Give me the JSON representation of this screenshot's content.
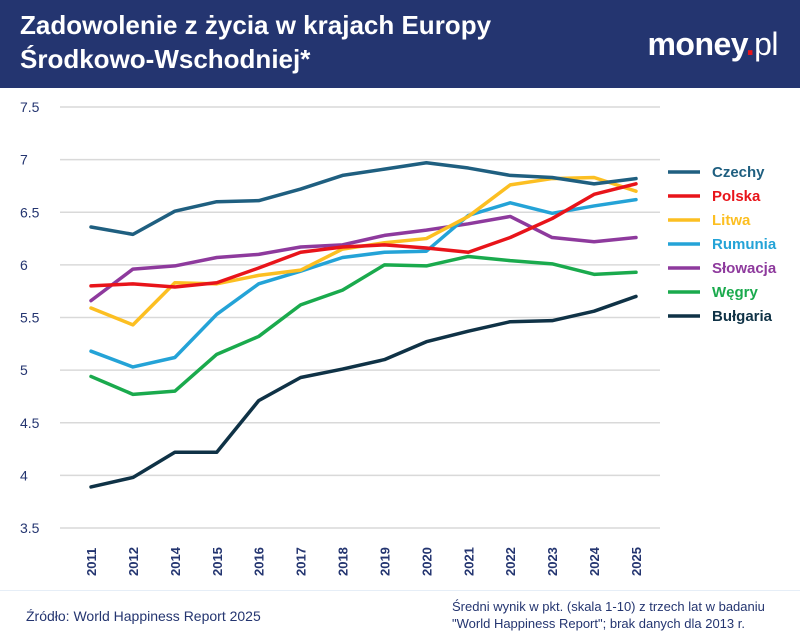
{
  "header": {
    "title_line1": "Zadowolenie z życia w krajach Europy",
    "title_line2": "Środkowo-Wschodniej*",
    "logo": "money.pl",
    "background_color": "#243570"
  },
  "chart_data": {
    "type": "line",
    "title": "Zadowolenie z życia w krajach Europy Środkowo-Wschodniej*",
    "xlabel": "",
    "ylabel": "",
    "categories": [
      "2011",
      "2012",
      "2014",
      "2015",
      "2016",
      "2017",
      "2018",
      "2019",
      "2020",
      "2021",
      "2022",
      "2023",
      "2024",
      "2025"
    ],
    "yticks": [
      "3.5",
      "4",
      "4.5",
      "5",
      "5.5",
      "6",
      "6.5",
      "7",
      "7.5"
    ],
    "ylim": [
      3.5,
      7.5
    ],
    "grid": true,
    "legend_placement": "right",
    "series": [
      {
        "name": "Czechy",
        "color": "#1f5f80",
        "values": [
          6.36,
          6.29,
          6.51,
          6.6,
          6.61,
          6.72,
          6.85,
          6.91,
          6.97,
          6.92,
          6.85,
          6.83,
          6.77,
          6.82
        ]
      },
      {
        "name": "Polska",
        "color": "#e8141a",
        "values": [
          5.8,
          5.82,
          5.79,
          5.83,
          5.97,
          6.12,
          6.17,
          6.19,
          6.16,
          6.12,
          6.26,
          6.44,
          6.67,
          6.77
        ]
      },
      {
        "name": "Litwa",
        "color": "#fcbf22",
        "values": [
          5.59,
          5.43,
          5.83,
          5.82,
          5.9,
          5.95,
          6.15,
          6.21,
          6.25,
          6.46,
          6.76,
          6.82,
          6.83,
          6.7
        ]
      },
      {
        "name": "Rumunia",
        "color": "#24a3d7",
        "values": [
          5.18,
          5.03,
          5.12,
          5.53,
          5.82,
          5.94,
          6.07,
          6.12,
          6.13,
          6.47,
          6.59,
          6.49,
          6.56,
          6.62
        ]
      },
      {
        "name": "Słowacja",
        "color": "#8e3a9d",
        "values": [
          5.66,
          5.96,
          5.99,
          6.07,
          6.1,
          6.17,
          6.19,
          6.28,
          6.33,
          6.39,
          6.46,
          6.26,
          6.22,
          6.26
        ]
      },
      {
        "name": "Węgry",
        "color": "#1aaa4d",
        "values": [
          4.94,
          4.77,
          4.8,
          5.15,
          5.32,
          5.62,
          5.76,
          6.0,
          5.99,
          6.08,
          6.04,
          6.01,
          5.91,
          5.93
        ]
      },
      {
        "name": "Bułgaria",
        "color": "#0f3246",
        "values": [
          3.89,
          3.98,
          4.22,
          4.22,
          4.71,
          4.93,
          5.01,
          5.1,
          5.27,
          5.37,
          5.46,
          5.47,
          5.56,
          5.7
        ]
      }
    ]
  },
  "footer": {
    "source": "Źródło: World Happiness Report 2025",
    "note_line1": "Średni wynik w pkt. (skala 1-10) z trzech lat w badaniu",
    "note_line2": "\"World Happiness Report\"; brak danych dla 2013 r."
  }
}
